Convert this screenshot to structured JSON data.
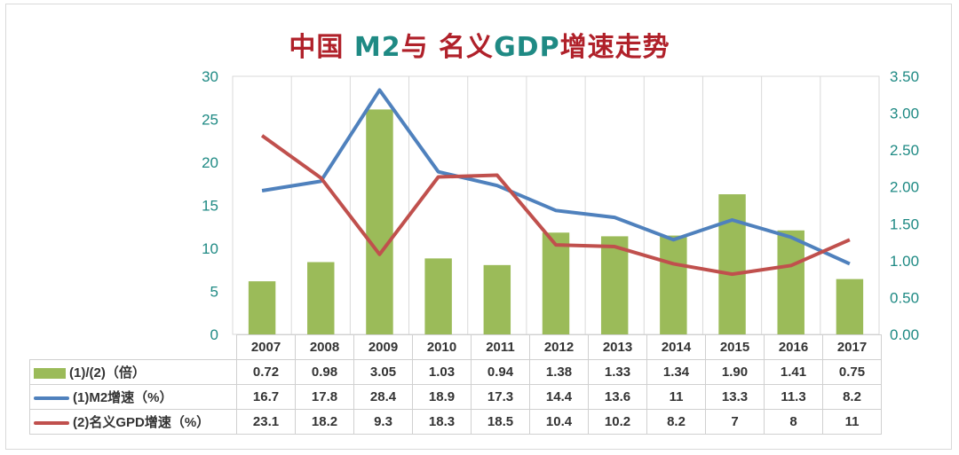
{
  "title": {
    "part1": "中国 ",
    "part2": "M2",
    "part3": "与 名义",
    "part4": "GDP",
    "part5": "增速走势"
  },
  "colors": {
    "bars": "#9bbb59",
    "m2": "#4f81bd",
    "gdp": "#c0504d",
    "axis": "#1f8a84",
    "title_red": "#b0212a"
  },
  "chart_data": {
    "type": "bar+line",
    "title": "中国 M2与 名义GDP增速走势",
    "categories": [
      "2007",
      "2008",
      "2009",
      "2010",
      "2011",
      "2012",
      "2013",
      "2014",
      "2015",
      "2016",
      "2017"
    ],
    "left_axis": {
      "range": [
        0,
        30
      ],
      "ticks": [
        "0",
        "5",
        "10",
        "15",
        "20",
        "25",
        "30"
      ]
    },
    "right_axis": {
      "range": [
        0,
        3.5
      ],
      "ticks": [
        "0.00",
        "0.50",
        "1.00",
        "1.50",
        "2.00",
        "2.50",
        "3.00",
        "3.50"
      ]
    },
    "grid": "vertical",
    "legend": "table-left",
    "series": [
      {
        "name": "(1)/(2)（倍）",
        "type": "bar",
        "axis": "right",
        "values": [
          "0.72",
          "0.98",
          "3.05",
          "1.03",
          "0.94",
          "1.38",
          "1.33",
          "1.34",
          "1.90",
          "1.41",
          "0.75"
        ]
      },
      {
        "name": "(1)M2增速（%）",
        "type": "line",
        "axis": "left",
        "values": [
          "16.7",
          "17.8",
          "28.4",
          "18.9",
          "17.3",
          "14.4",
          "13.6",
          "11",
          "13.3",
          "11.3",
          "8.2"
        ]
      },
      {
        "name": "(2)名义GPD增速（%）",
        "type": "line",
        "axis": "left",
        "values": [
          "23.1",
          "18.2",
          "9.3",
          "18.3",
          "18.5",
          "10.4",
          "10.2",
          "8.2",
          "7",
          "8",
          "11"
        ]
      }
    ]
  }
}
